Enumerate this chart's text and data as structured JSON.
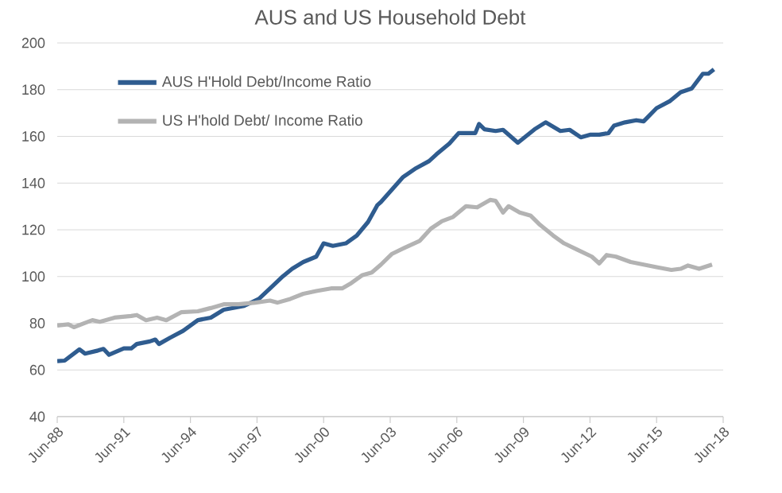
{
  "chart_data": {
    "type": "line",
    "title": "AUS and US Household Debt",
    "xlim": [
      "1988-06",
      "2018-06"
    ],
    "xticks": [
      {
        "value": "1988-06",
        "label": "Jun-88"
      },
      {
        "value": "1991-06",
        "label": "Jun-91"
      },
      {
        "value": "1994-06",
        "label": "Jun-94"
      },
      {
        "value": "1997-06",
        "label": "Jun-97"
      },
      {
        "value": "2000-06",
        "label": "Jun-00"
      },
      {
        "value": "2003-06",
        "label": "Jun-03"
      },
      {
        "value": "2006-06",
        "label": "Jun-06"
      },
      {
        "value": "2009-06",
        "label": "Jun-09"
      },
      {
        "value": "2012-06",
        "label": "Jun-12"
      },
      {
        "value": "2015-06",
        "label": "Jun-15"
      },
      {
        "value": "2018-06",
        "label": "Jun-18"
      }
    ],
    "ylim": [
      40,
      200
    ],
    "yticks": [
      40,
      60,
      80,
      100,
      120,
      140,
      160,
      180,
      200
    ],
    "grid": "y",
    "legend": "top left",
    "marker": "none",
    "line_style": "solid",
    "series": [
      {
        "name": "AUS H'Hold Debt/Income Ratio",
        "color": "#2f5c8f",
        "x": [
          "1988-06",
          "1988-10",
          "1989-06",
          "1989-09",
          "1990-04",
          "1990-07",
          "1990-10",
          "1991-06",
          "1991-10",
          "1992-01",
          "1992-08",
          "1992-11",
          "1993-01",
          "1993-07",
          "1994-02",
          "1994-10",
          "1995-05",
          "1995-12",
          "1996-11",
          "1997-07",
          "1998-02",
          "1998-08",
          "1999-01",
          "1999-07",
          "2000-02",
          "2000-06",
          "2000-11",
          "2001-06",
          "2001-12",
          "2002-06",
          "2002-11",
          "2003-01",
          "2004-01",
          "2004-08",
          "2005-03",
          "2005-07",
          "2006-02",
          "2006-07",
          "2007-04",
          "2007-06",
          "2007-09",
          "2008-03",
          "2008-07",
          "2009-03",
          "2009-12",
          "2010-06",
          "2011-02",
          "2011-07",
          "2012-01",
          "2012-06",
          "2012-11",
          "2013-04",
          "2013-07",
          "2014-01",
          "2014-07",
          "2014-11",
          "2015-06",
          "2016-01",
          "2016-07",
          "2017-01",
          "2017-07",
          "2017-10",
          "2018-01"
        ],
        "values": [
          63.8,
          64,
          68.8,
          67.0,
          68.3,
          69,
          66.5,
          69.2,
          69.2,
          71.1,
          72.2,
          73,
          71.1,
          73.8,
          76.7,
          81.3,
          82.4,
          85.8,
          87.4,
          90.4,
          95.6,
          100.1,
          103.3,
          106.2,
          108.5,
          114.2,
          113.1,
          114.2,
          117.6,
          123.3,
          130.5,
          131.9,
          142.6,
          146.4,
          149.4,
          152.3,
          156.9,
          161.4,
          161.4,
          165.3,
          163.0,
          162.3,
          162.8,
          157.3,
          163.0,
          166.0,
          162.3,
          162.8,
          159.6,
          160.7,
          160.7,
          161.4,
          164.6,
          166.0,
          166.9,
          166.4,
          172.1,
          175.0,
          178.9,
          180.5,
          186.8,
          186.8,
          188.7
        ]
      },
      {
        "name": "US H'hold Debt/ Income Ratio",
        "color": "#b3b3b3",
        "x": [
          "1988-06",
          "1988-12",
          "1989-03",
          "1989-09",
          "1990-01",
          "1990-05",
          "1991-01",
          "1991-10",
          "1992-01",
          "1992-06",
          "1992-12",
          "1993-05",
          "1994-01",
          "1994-10",
          "1995-05",
          "1995-12",
          "1996-08",
          "1997-05",
          "1998-01",
          "1998-05",
          "1998-12",
          "1999-07",
          "2000-02",
          "2000-10",
          "2001-04",
          "2001-09",
          "2002-03",
          "2002-08",
          "2003-01",
          "2003-07",
          "2004-02",
          "2004-10",
          "2005-04",
          "2005-10",
          "2006-04",
          "2006-11",
          "2007-05",
          "2007-12",
          "2008-03",
          "2008-07",
          "2008-10",
          "2009-04",
          "2009-10",
          "2010-03",
          "2010-10",
          "2011-04",
          "2011-11",
          "2012-07",
          "2012-11",
          "2013-03",
          "2013-08",
          "2014-04",
          "2014-11",
          "2015-06",
          "2016-02",
          "2016-07",
          "2016-11",
          "2017-05",
          "2017-12"
        ],
        "values": [
          79.0,
          79.5,
          78.3,
          80.1,
          81.3,
          80.6,
          82.4,
          83.1,
          83.5,
          81.3,
          82.4,
          81.3,
          84.7,
          85.1,
          86.5,
          88.1,
          88.1,
          88.8,
          89.7,
          88.8,
          90.4,
          92.6,
          93.8,
          94.9,
          94.9,
          97.2,
          100.6,
          101.7,
          105.1,
          109.7,
          112.4,
          115.3,
          120.5,
          123.7,
          125.5,
          130.1,
          129.6,
          132.8,
          132.4,
          127.4,
          130.1,
          127.4,
          126.0,
          122.1,
          117.6,
          114.2,
          111.5,
          108.5,
          105.6,
          109.2,
          108.5,
          106.2,
          105.1,
          104.0,
          102.8,
          103.3,
          104.7,
          103.3,
          105.1
        ]
      }
    ]
  }
}
